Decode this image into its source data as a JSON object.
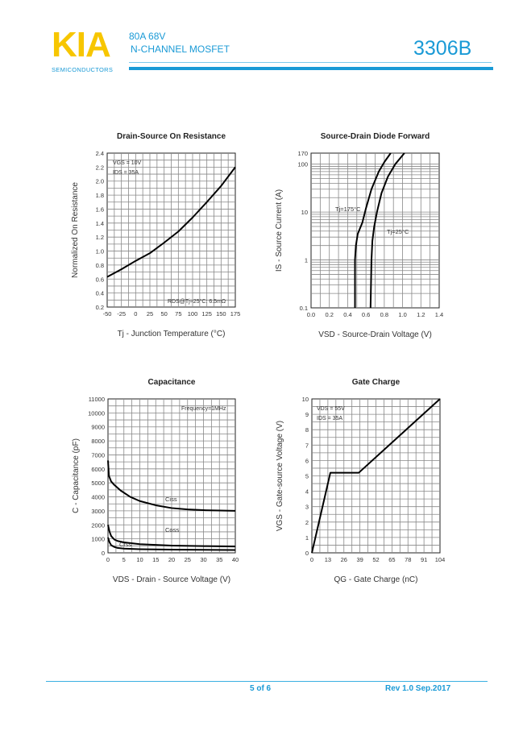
{
  "header": {
    "logo": "KIA",
    "logo_sub": "SEMICONDUCTORS",
    "spec_line1": "80A 68V",
    "spec_line2": "N-CHANNEL MOSFET",
    "part_number": "3306B",
    "brand_color": "#1a9ad6",
    "logo_color": "#f7c600"
  },
  "footer": {
    "page": "5 of 6",
    "revision": "Rev 1.0 Sep.2017"
  },
  "chart_data": [
    {
      "type": "line",
      "title": "Drain-Source On Resistance",
      "xlabel": "Tj - Junction Temperature (°C)",
      "ylabel": "Normalized On Resistance",
      "xlim": [
        -50,
        175
      ],
      "ylim": [
        0.2,
        2.4
      ],
      "grid": true,
      "xticks": [
        "-50",
        "-25",
        "0",
        "25",
        "50",
        "75",
        "100",
        "125",
        "150",
        "175"
      ],
      "yticks": [
        "0.2",
        "0.4",
        "0.6",
        "0.8",
        "1.0",
        "1.2",
        "1.4",
        "1.6",
        "1.8",
        "2.0",
        "2.2",
        "2.4"
      ],
      "annotations": [
        "VGS = 10V",
        "IDS = 35A",
        "RDS@Tj=25°C: 6.5mΩ"
      ],
      "series": [
        {
          "x": [
            -50,
            -25,
            0,
            25,
            50,
            75,
            100,
            125,
            150,
            175
          ],
          "y": [
            0.63,
            0.74,
            0.86,
            0.97,
            1.12,
            1.28,
            1.48,
            1.7,
            1.93,
            2.2
          ]
        }
      ]
    },
    {
      "type": "line",
      "title": "Source-Drain Diode Forward",
      "xlabel": "VSD - Source-Drain Voltage (V)",
      "ylabel": "IS - Source Current (A)",
      "xlim": [
        0,
        1.4
      ],
      "ylim": [
        0.1,
        170
      ],
      "yscale": "log",
      "grid": true,
      "xticks": [
        "0.0",
        "0.2",
        "0.4",
        "0.6",
        "0.8",
        "1.0",
        "1.2",
        "1.4"
      ],
      "yticks": [
        "0.1",
        "1",
        "10",
        "100",
        "170"
      ],
      "series": [
        {
          "name": "Tj=175°C",
          "x": [
            0.48,
            0.48,
            0.49,
            0.51,
            0.56,
            0.6,
            0.66,
            0.74,
            0.8,
            0.87
          ],
          "y": [
            0.1,
            1,
            2,
            3.5,
            6,
            12,
            30,
            70,
            110,
            170
          ]
        },
        {
          "name": "Tj=25°C",
          "x": [
            0.65,
            0.66,
            0.67,
            0.69,
            0.72,
            0.77,
            0.84,
            0.92,
            1.02
          ],
          "y": [
            0.1,
            1,
            2.5,
            5,
            10,
            25,
            55,
            100,
            170
          ]
        }
      ]
    },
    {
      "type": "line",
      "title": "Capacitance",
      "xlabel": "VDS - Drain - Source Voltage (V)",
      "ylabel": "C - Capacitance (pF)",
      "xlim": [
        0,
        40
      ],
      "ylim": [
        0,
        11000
      ],
      "grid": true,
      "xticks": [
        "0",
        "5",
        "10",
        "15",
        "20",
        "25",
        "30",
        "35",
        "40"
      ],
      "yticks": [
        "0",
        "1000",
        "2000",
        "3000",
        "4000",
        "5000",
        "6000",
        "7000",
        "8000",
        "9000",
        "10000",
        "11000"
      ],
      "annotations": [
        "Frequency=1MHz"
      ],
      "series": [
        {
          "name": "Ciss",
          "x": [
            0,
            0.3,
            1,
            2,
            4,
            7,
            10,
            15,
            20,
            25,
            30,
            40
          ],
          "y": [
            6600,
            5500,
            5100,
            4850,
            4450,
            4000,
            3700,
            3400,
            3200,
            3100,
            3050,
            3000
          ]
        },
        {
          "name": "Coss",
          "x": [
            0,
            0.5,
            1,
            2,
            3,
            5,
            10,
            20,
            30,
            40
          ],
          "y": [
            2000,
            1500,
            1200,
            950,
            850,
            750,
            620,
            520,
            480,
            450
          ]
        },
        {
          "name": "Crss",
          "x": [
            0,
            0.5,
            1,
            2,
            3,
            5,
            10,
            20,
            40
          ],
          "y": [
            1100,
            750,
            550,
            420,
            350,
            300,
            260,
            230,
            200
          ]
        }
      ]
    },
    {
      "type": "line",
      "title": "Gate Charge",
      "xlabel": "QG - Gate Charge (nC)",
      "ylabel": "VGS - Gate-source Voltage (V)",
      "xlim": [
        0,
        104
      ],
      "ylim": [
        0,
        10
      ],
      "grid": true,
      "xticks": [
        "0",
        "13",
        "26",
        "39",
        "52",
        "65",
        "78",
        "91",
        "104"
      ],
      "yticks": [
        "0",
        "1",
        "2",
        "3",
        "4",
        "5",
        "6",
        "7",
        "8",
        "9",
        "10"
      ],
      "annotations": [
        "VDS = 55V",
        "IDS = 35A"
      ],
      "series": [
        {
          "x": [
            0,
            15,
            38,
            104
          ],
          "y": [
            0,
            5.2,
            5.2,
            10
          ]
        }
      ]
    }
  ]
}
